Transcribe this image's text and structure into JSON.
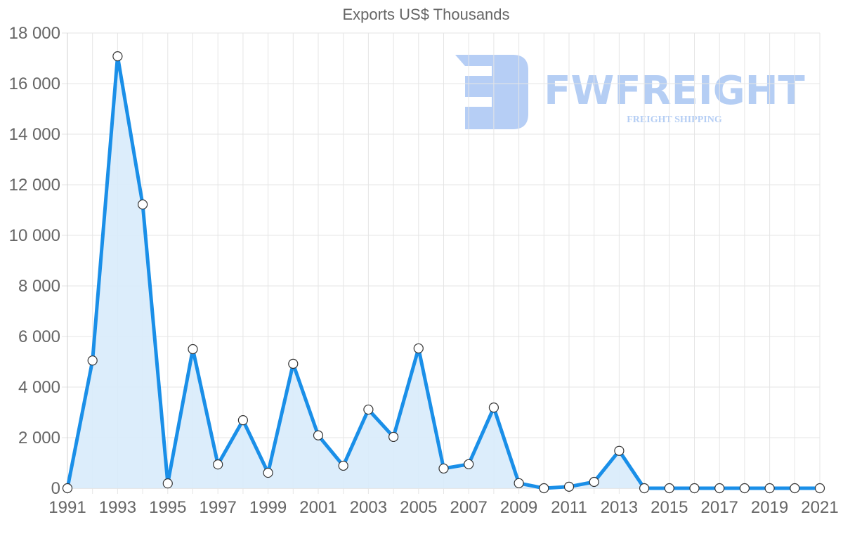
{
  "chart_data": {
    "type": "area",
    "title": "Exports US$ Thousands",
    "xlabel": "",
    "ylabel": "",
    "ylim": [
      0,
      18000
    ],
    "grid": true,
    "legend": "none",
    "x": [
      1991,
      1992,
      1993,
      1994,
      1995,
      1996,
      1997,
      1998,
      1999,
      2000,
      2001,
      2002,
      2003,
      2004,
      2005,
      2006,
      2007,
      2008,
      2009,
      2010,
      2011,
      2012,
      2013,
      2014,
      2015,
      2016,
      2017,
      2018,
      2019,
      2020,
      2021
    ],
    "series": [
      {
        "name": "Exports US$ Thousands",
        "values": [
          0,
          5050,
          17080,
          11220,
          190,
          5500,
          940,
          2690,
          610,
          4920,
          2090,
          890,
          3110,
          2030,
          5530,
          780,
          950,
          3190,
          200,
          0,
          60,
          250,
          1480,
          0,
          0,
          0,
          0,
          0,
          0,
          0,
          0
        ]
      }
    ],
    "y_ticks": [
      "0",
      "2 000",
      "4 000",
      "6 000",
      "8 000",
      "10 000",
      "12 000",
      "14 000",
      "16 000",
      "18 000"
    ],
    "x_ticks": [
      "1991",
      "1993",
      "1995",
      "1997",
      "1999",
      "2001",
      "2003",
      "2005",
      "2007",
      "2009",
      "2011",
      "2013",
      "2015",
      "2017",
      "2019",
      "2021"
    ],
    "colors": {
      "line": "#1a8fe8",
      "fill": "#d8ebfb",
      "point_fill": "#ffffff",
      "point_stroke": "#333333"
    }
  },
  "watermark": {
    "brand": "FWFREIGHT",
    "tagline": "FREIGHT SHIPPING",
    "color": "#a9c6f3"
  }
}
